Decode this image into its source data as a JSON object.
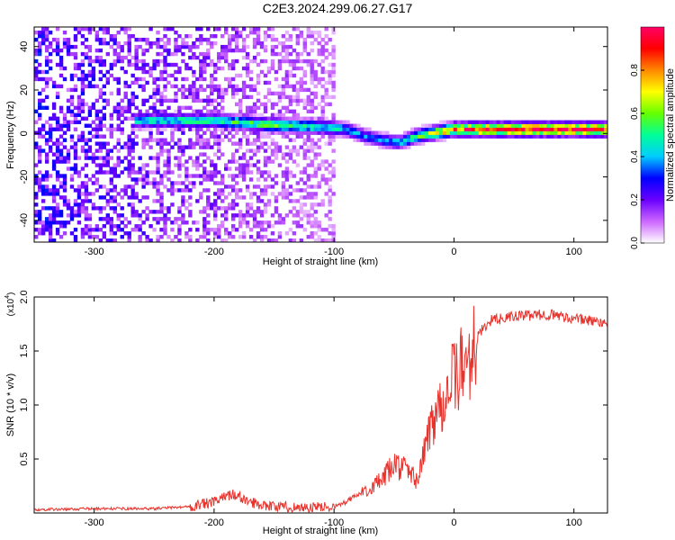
{
  "title": "C2E3.2024.299.06.27.G17",
  "chart_data": [
    {
      "type": "heatmap",
      "xlabel": "Height of straight line (km)",
      "ylabel": "Frequency (Hz)",
      "xlim": [
        -350,
        128
      ],
      "ylim": [
        -50,
        49
      ],
      "xticks": [
        -300,
        -200,
        -100,
        0,
        100
      ],
      "yticks": [
        -40,
        -20,
        0,
        20,
        40
      ],
      "colorbar": {
        "label": "Normalized spectral amplitude",
        "range": [
          0,
          1
        ],
        "ticks": [
          "0.0",
          "0.2",
          "0.4",
          "0.6",
          "0.8"
        ],
        "tick_values": [
          0.0,
          0.2,
          0.4,
          0.6,
          0.8
        ],
        "colors": [
          "#ffffff",
          "#cc66ff",
          "#6a00ff",
          "#0000ff",
          "#00ccff",
          "#00ff99",
          "#66ff00",
          "#ffff00",
          "#ff8800",
          "#ff0000",
          "#ff0066"
        ]
      },
      "signal_band": {
        "x": [
          -265,
          -200,
          -150,
          -110,
          -90,
          -75,
          -60,
          -45,
          -30,
          -10,
          0,
          20,
          60,
          100,
          128
        ],
        "frequency": [
          6,
          6,
          4,
          3,
          2,
          -1,
          -3,
          -4,
          -1,
          1,
          2,
          2,
          2,
          2,
          2
        ],
        "amplitude": [
          0.45,
          0.5,
          0.55,
          0.5,
          0.4,
          0.35,
          0.35,
          0.4,
          0.55,
          0.7,
          0.8,
          0.9,
          0.95,
          0.95,
          0.9
        ]
      },
      "noise_region": {
        "x_start": -350,
        "x_end": -100,
        "level": 0.15
      }
    },
    {
      "type": "line",
      "xlabel": "Height of straight line (km)",
      "ylabel": "SNR (10 * v/v)",
      "y_multiplier": "(x10",
      "y_multiplier_exp": "4",
      "y_multiplier_close": ")",
      "xlim": [
        -350,
        128
      ],
      "ylim": [
        0,
        2.0
      ],
      "xticks": [
        -300,
        -200,
        -100,
        0,
        100
      ],
      "yticks": [
        "0.5",
        "1.0",
        "1.5",
        "2.0"
      ],
      "ytick_values": [
        0.5,
        1.0,
        1.5,
        2.0
      ],
      "color": "#e8322c",
      "series": [
        {
          "name": "SNR",
          "x": [
            -350,
            -300,
            -250,
            -220,
            -200,
            -185,
            -170,
            -150,
            -120,
            -100,
            -90,
            -75,
            -60,
            -50,
            -40,
            -30,
            -20,
            -10,
            0,
            10,
            20,
            30,
            50,
            80,
            100,
            128
          ],
          "y": [
            0.03,
            0.04,
            0.04,
            0.06,
            0.1,
            0.18,
            0.1,
            0.06,
            0.05,
            0.06,
            0.1,
            0.2,
            0.3,
            0.45,
            0.4,
            0.3,
            0.8,
            1.05,
            1.25,
            1.4,
            1.65,
            1.78,
            1.82,
            1.84,
            1.8,
            1.76
          ]
        }
      ]
    }
  ]
}
